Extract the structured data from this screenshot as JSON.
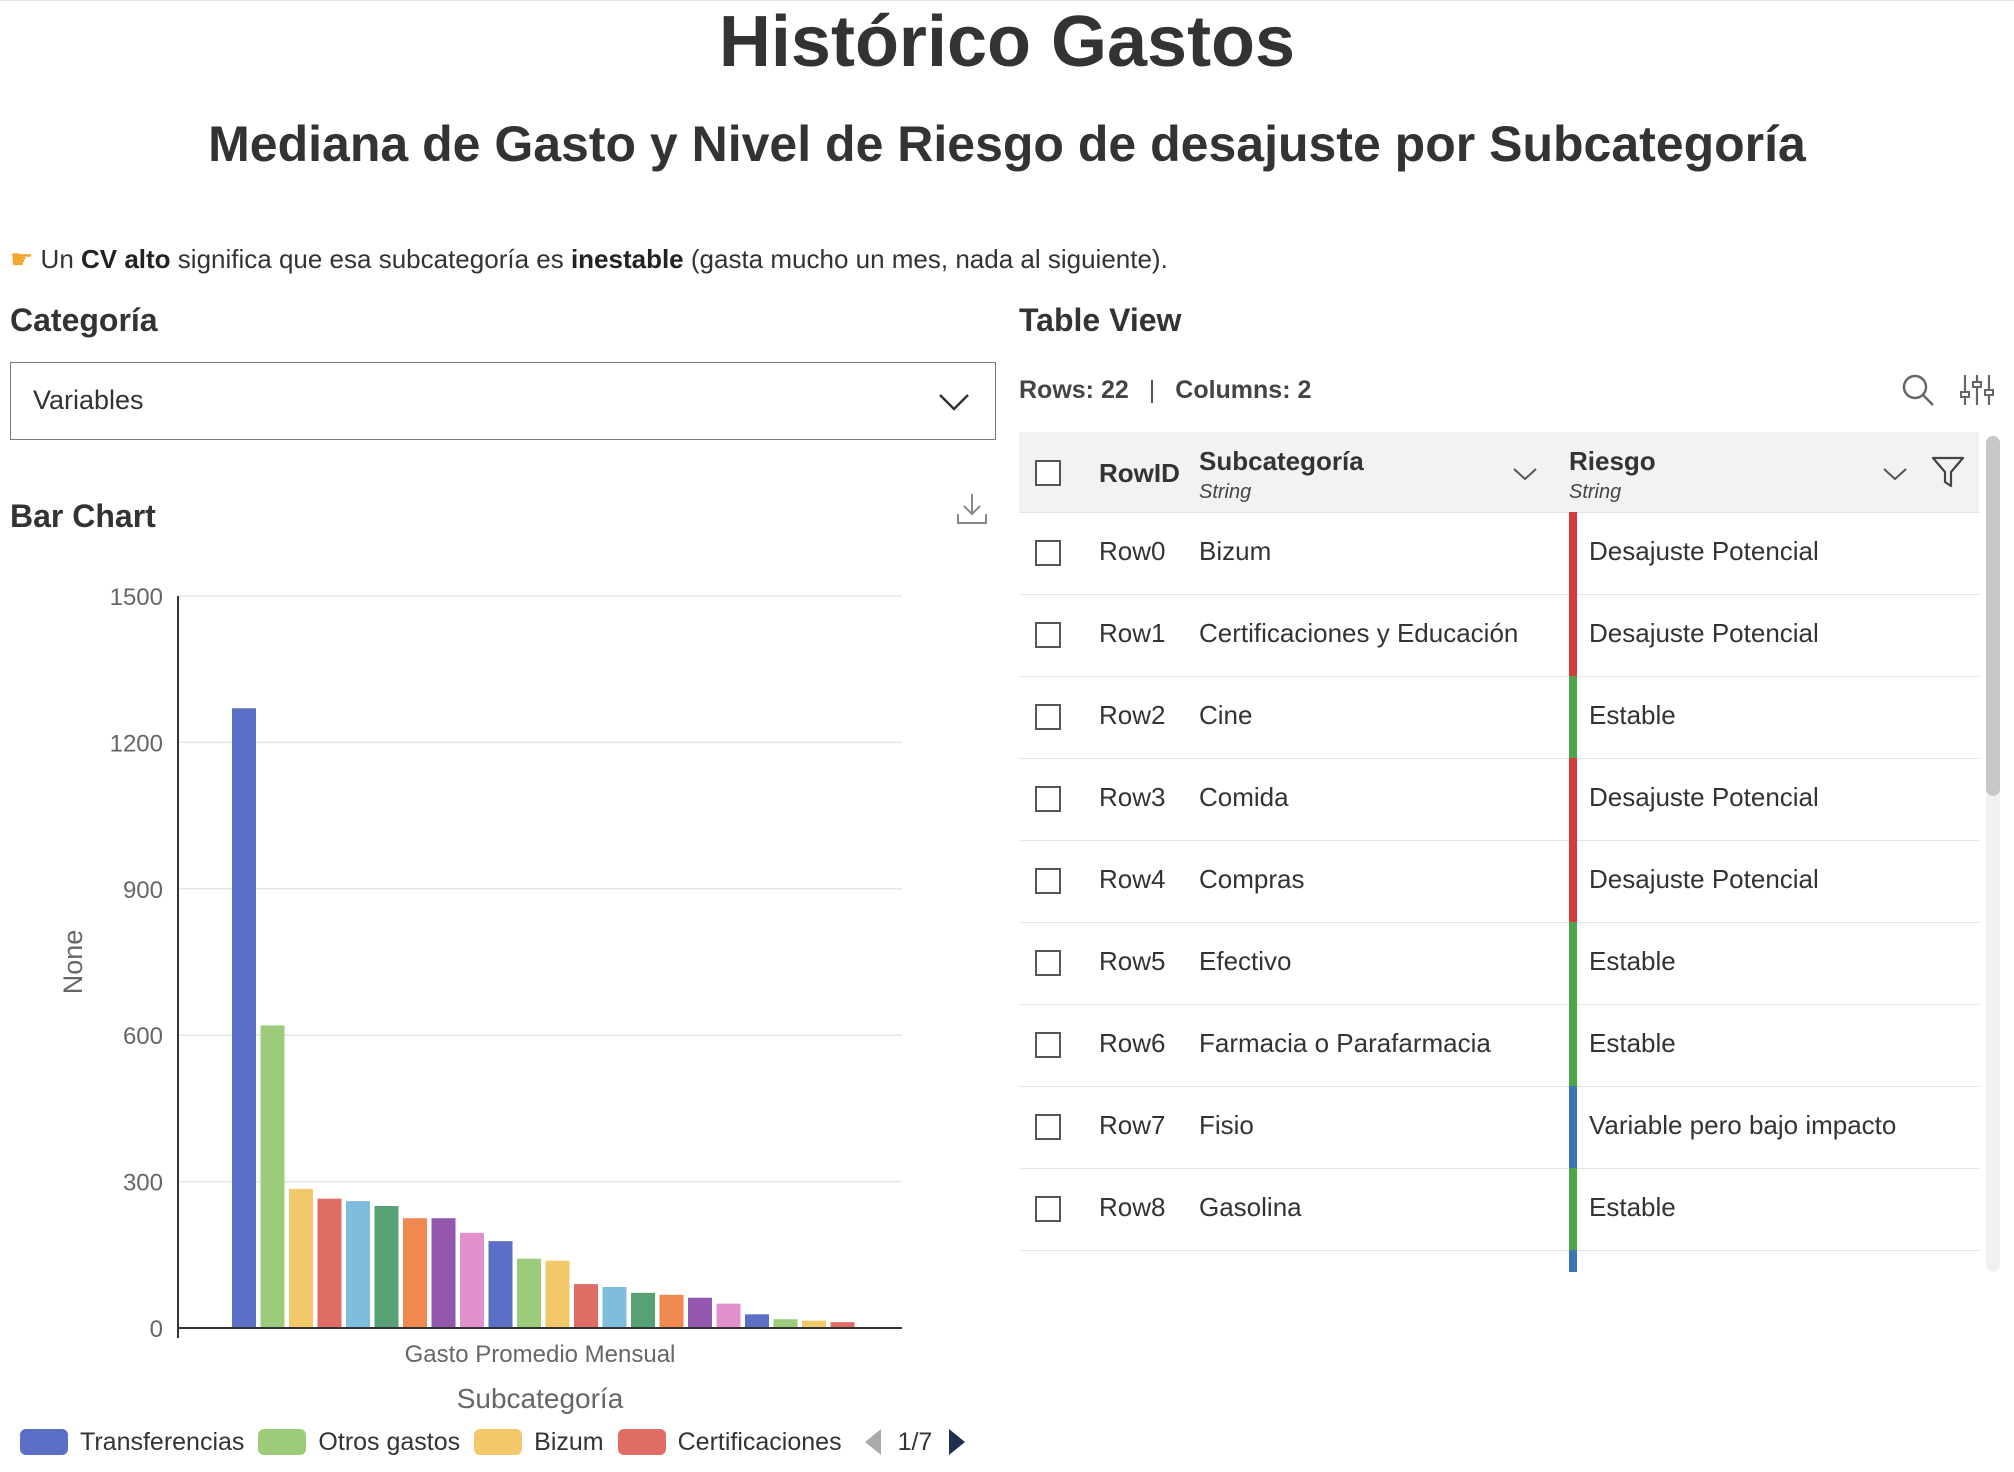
{
  "header": {
    "title": "Histórico Gastos",
    "subtitle": "Mediana de Gasto y Nivel de Riesgo de desajuste por Subcategoría"
  },
  "note": {
    "icon": "pointing-hand-icon",
    "pre": " Un ",
    "bold1": "CV alto",
    "mid": " significa que esa subcategoría es ",
    "bold2": "inestable",
    "post": " (gasta mucho un mes, nada al siguiente)."
  },
  "filter": {
    "label": "Categoría",
    "selected": "Variables"
  },
  "chart_section": {
    "label": "Bar Chart"
  },
  "chart_data": {
    "type": "bar",
    "ylabel": "None",
    "xlabel": "Subcategoría",
    "category_label": "Gasto Promedio Mensual",
    "ylim": [
      0,
      1500
    ],
    "yticks": [
      0,
      300,
      600,
      900,
      1200,
      1500
    ],
    "grid": true,
    "legend_position": "bottom",
    "values": [
      1270,
      620,
      285,
      265,
      260,
      250,
      225,
      225,
      195,
      178,
      142,
      138,
      90,
      84,
      72,
      68,
      62,
      50,
      28,
      18,
      15,
      12
    ],
    "colors": [
      "#5b6fc7",
      "#9dcb7c",
      "#f3c86a",
      "#e06c66",
      "#7fbdde",
      "#56a274",
      "#f0894f",
      "#9358ae",
      "#e28fce",
      "#5b6fc7",
      "#9dcb7c",
      "#f3c86a",
      "#e06c66",
      "#7fbdde",
      "#56a274",
      "#f0894f",
      "#9358ae",
      "#e28fce",
      "#5b6fc7",
      "#9dcb7c",
      "#f3c86a",
      "#e06c66"
    ]
  },
  "legend": {
    "items": [
      {
        "label": "Transferencias",
        "color": "#5b6fc7"
      },
      {
        "label": "Otros gastos",
        "color": "#9dcb7c"
      },
      {
        "label": "Bizum",
        "color": "#f3c86a"
      },
      {
        "label": "Certificaciones",
        "color": "#e06c66"
      }
    ],
    "page": "1/7"
  },
  "table_section": {
    "label": "Table View",
    "rows_text": "Rows: 22",
    "sep": "|",
    "cols_text": "Columns: 2",
    "columns": {
      "rowid": "RowID",
      "sub_name": "Subcategoría",
      "sub_type": "String",
      "risk_name": "Riesgo",
      "risk_type": "String"
    },
    "rows": [
      {
        "id": "Row0",
        "sub": "Bizum",
        "risk": "Desajuste Potencial",
        "color": "#d43c3c"
      },
      {
        "id": "Row1",
        "sub": "Certificaciones y Educación",
        "risk": "Desajuste Potencial",
        "color": "#d43c3c"
      },
      {
        "id": "Row2",
        "sub": "Cine",
        "risk": "Estable",
        "color": "#4ea64a"
      },
      {
        "id": "Row3",
        "sub": "Comida",
        "risk": "Desajuste Potencial",
        "color": "#d43c3c"
      },
      {
        "id": "Row4",
        "sub": "Compras",
        "risk": "Desajuste Potencial",
        "color": "#d43c3c"
      },
      {
        "id": "Row5",
        "sub": "Efectivo",
        "risk": "Estable",
        "color": "#4ea64a"
      },
      {
        "id": "Row6",
        "sub": "Farmacia o Parafarmacia",
        "risk": "Estable",
        "color": "#4ea64a"
      },
      {
        "id": "Row7",
        "sub": "Fisio",
        "risk": "Variable pero bajo impacto",
        "color": "#3d74b8"
      },
      {
        "id": "Row8",
        "sub": "Gasolina",
        "risk": "Estable",
        "color": "#4ea64a"
      }
    ],
    "next_row_color": "#3d74b8"
  }
}
